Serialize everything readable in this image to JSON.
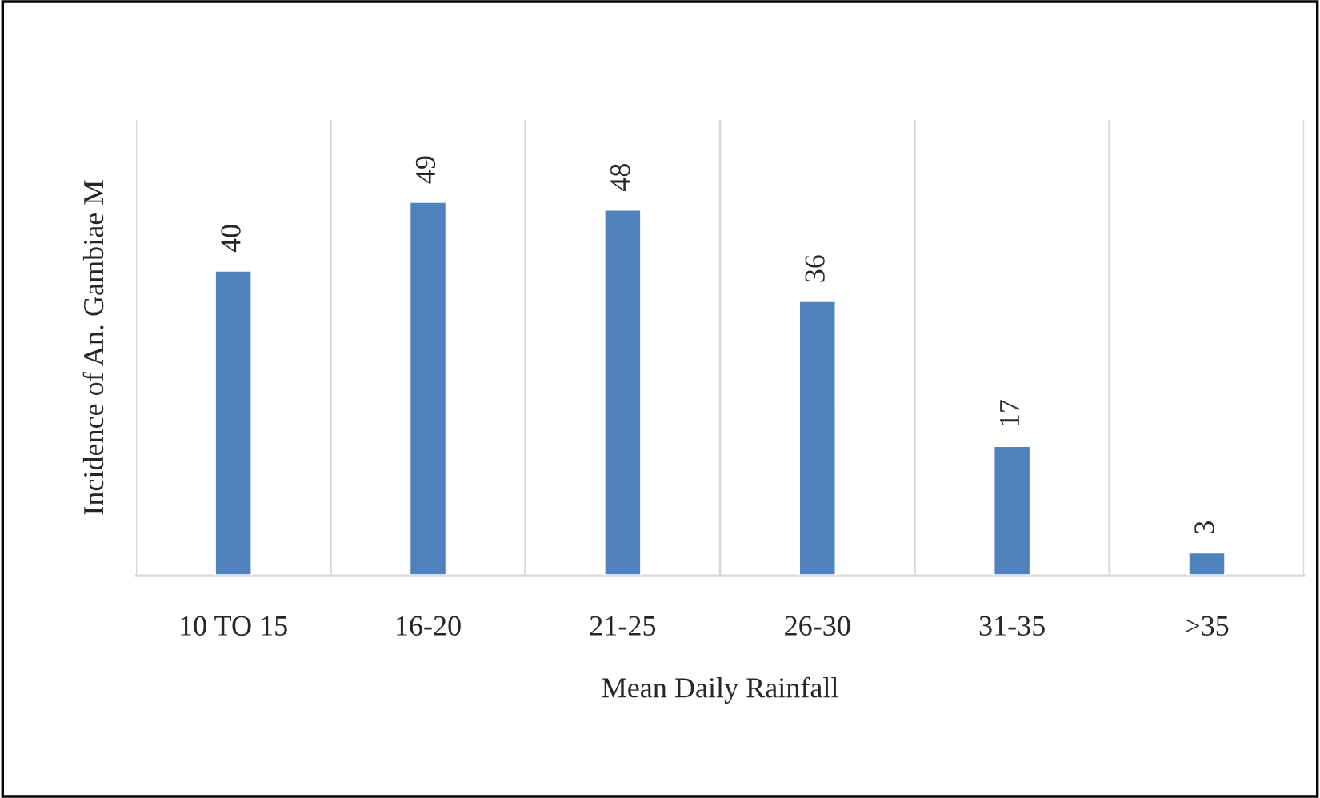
{
  "chart_data": {
    "type": "bar",
    "categories": [
      "10 TO 15",
      "16-20",
      "21-25",
      "26-30",
      "31-35",
      ">35"
    ],
    "values": [
      40,
      49,
      48,
      36,
      17,
      3
    ],
    "color": "#4f81bd",
    "xlabel": "Mean Daily Rainfall",
    "ylabel": "Incidence of An. Gambiae M",
    "data_labels": true,
    "grid": "x",
    "tick_labels": "x"
  }
}
